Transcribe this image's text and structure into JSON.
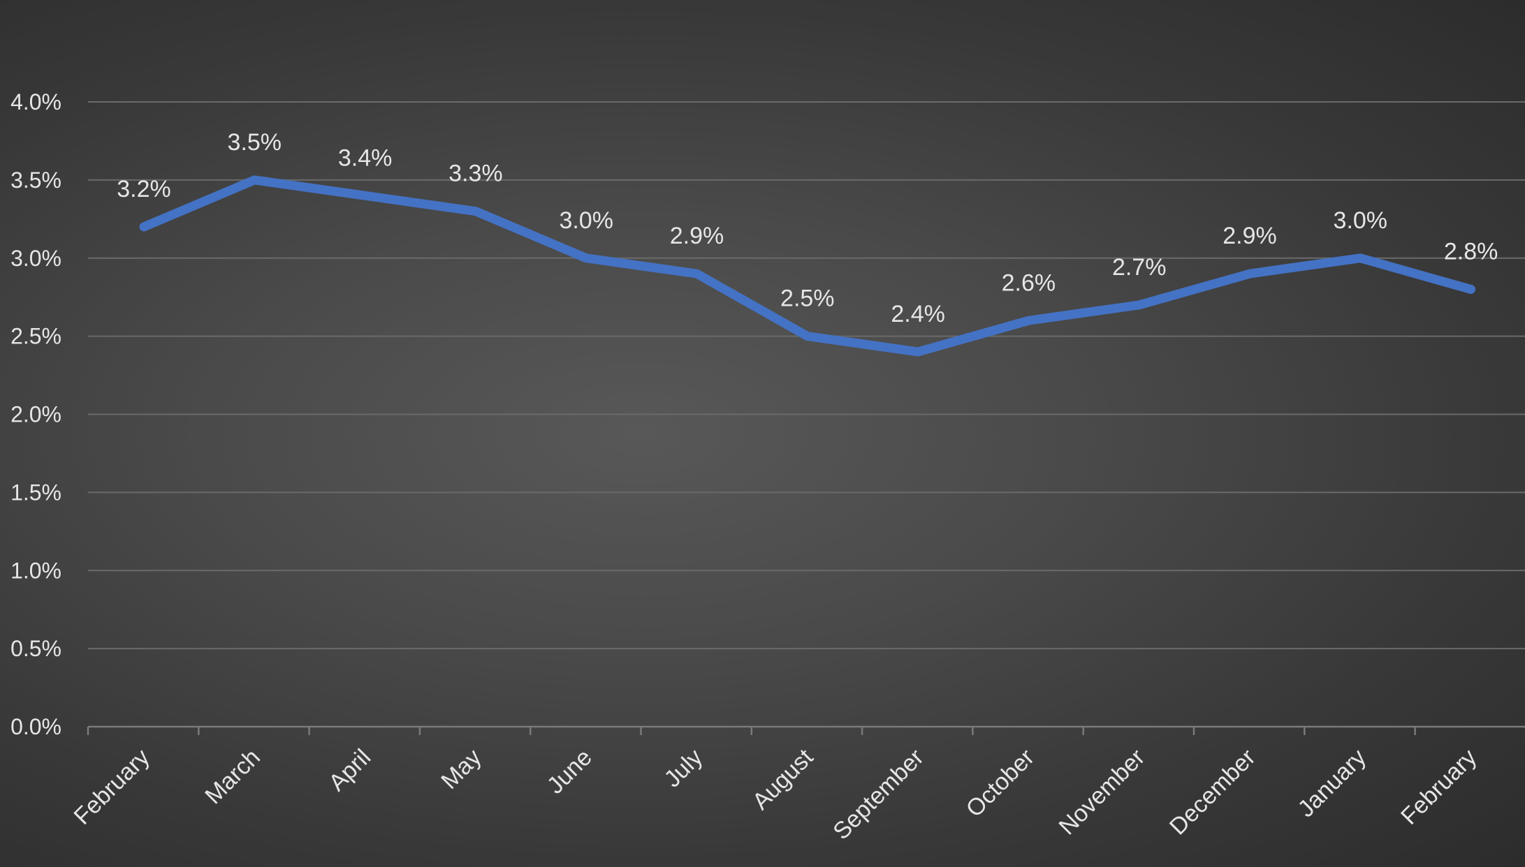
{
  "chart_data": {
    "type": "line",
    "title": "",
    "xlabel": "",
    "ylabel": "",
    "categories": [
      "February",
      "March",
      "April",
      "May",
      "June",
      "July",
      "August",
      "September",
      "October",
      "November",
      "December",
      "January",
      "February"
    ],
    "series": [
      {
        "values": [
          3.2,
          3.5,
          3.4,
          3.3,
          3.0,
          2.9,
          2.5,
          2.4,
          2.6,
          2.7,
          2.9,
          3.0,
          2.8
        ],
        "labels": [
          "3.2%",
          "3.5%",
          "3.4%",
          "3.3%",
          "3.0%",
          "2.9%",
          "2.5%",
          "2.4%",
          "2.6%",
          "2.7%",
          "2.9%",
          "3.0%",
          "2.8%"
        ],
        "color": "#4472c4"
      }
    ],
    "ylim": [
      0,
      4
    ],
    "y_ticks": [
      "0.0%",
      "0.5%",
      "1.0%",
      "1.5%",
      "2.0%",
      "2.5%",
      "3.0%",
      "3.5%",
      "4.0%"
    ],
    "grid": true,
    "legend": "none",
    "colors": {
      "line": "#4472c4",
      "gridline": "#6a6a6a",
      "text": "#e6e6e6"
    }
  }
}
